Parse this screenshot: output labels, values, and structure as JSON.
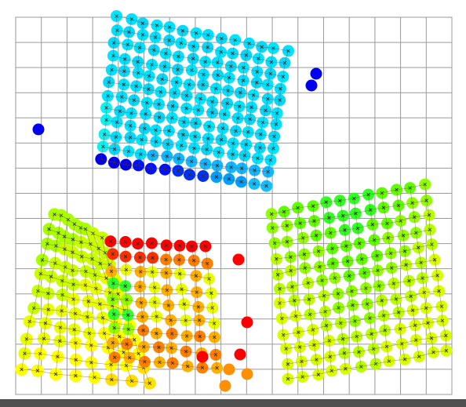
{
  "scene": {
    "colors": {
      "background": "#ffffff",
      "grid_line": "#9a9a9a",
      "link_line": "#7a3b3b",
      "node_marker": "#2a2a2a",
      "bottom_bar": "#505050"
    },
    "grid": {
      "rows": 15,
      "cols": 17
    },
    "cloths": [
      {
        "name": "cyan-cloth",
        "rows": 12,
        "cols": 14,
        "palette": [
          "#00e5ff",
          "#00e0ff",
          "#08d8f8",
          "#10f0f0"
        ],
        "ragged_rows": [
          {
            "row": 11,
            "palette": [
              "#0000e8",
              "#0010ff",
              "#0030f0",
              "#00a0ff",
              "#10c0ff"
            ]
          }
        ]
      },
      {
        "name": "green-cloth-right",
        "rows": 12,
        "cols": 12,
        "palette": [
          "#30ff20",
          "#60ff00",
          "#90ff00",
          "#b8ff00",
          "#d8ff00"
        ]
      },
      {
        "name": "yellow-cloth-left",
        "rows": 11,
        "cols": 8,
        "palette": [
          "#a8ff00",
          "#c8ff00",
          "#e8ff00",
          "#ffff00",
          "#ffe000"
        ]
      },
      {
        "name": "red-orange-cloth-middle",
        "rows": 9,
        "cols": 8,
        "palette": [
          "#ff0000",
          "#ff3000",
          "#ff8000",
          "#ffb000",
          "#e8ff00",
          "#90ff00",
          "#30ff30"
        ]
      }
    ],
    "stray_particles": [
      {
        "name": "particle-blue-left",
        "color": "#0000f0"
      },
      {
        "name": "particle-blue-top-right-a",
        "color": "#0000f0"
      },
      {
        "name": "particle-blue-top-right-b",
        "color": "#0000f0"
      },
      {
        "name": "particle-red-a",
        "color": "#ff0000"
      },
      {
        "name": "particle-red-b",
        "color": "#ff0000"
      },
      {
        "name": "particle-red-c",
        "color": "#ff0000"
      },
      {
        "name": "particle-red-d",
        "color": "#ff0000"
      },
      {
        "name": "particle-orange-a",
        "color": "#ff9000"
      },
      {
        "name": "particle-orange-b",
        "color": "#ff9000"
      },
      {
        "name": "particle-orange-c",
        "color": "#ff9000"
      }
    ]
  }
}
